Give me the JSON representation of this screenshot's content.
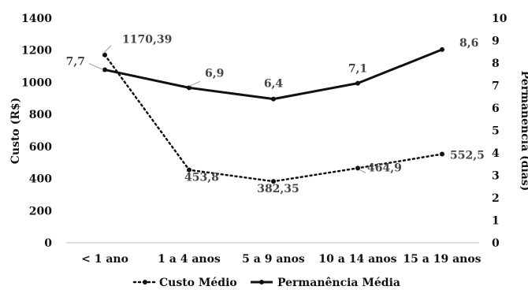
{
  "chart_data": {
    "type": "line",
    "title": "",
    "xlabel": "",
    "ylabel": "Custo (R$)",
    "y2label": "Permanência (dias)",
    "categories": [
      "< 1 ano",
      "1 a 4 anos",
      "5 a 9 anos",
      "10 a 14 anos",
      "15 a 19 anos"
    ],
    "ylim": [
      0,
      1400
    ],
    "y2lim": [
      0,
      10
    ],
    "yticks": [
      "0",
      "200",
      "400",
      "600",
      "800",
      "1000",
      "1200",
      "1400"
    ],
    "y2ticks": [
      "0",
      "1",
      "2",
      "3",
      "4",
      "5",
      "6",
      "7",
      "8",
      "9",
      "10"
    ],
    "grid": false,
    "legend_position": "bottom",
    "series": [
      {
        "name": "Custo Médio",
        "axis": "left",
        "style": "dotted",
        "color": "#111111",
        "values": [
          1170.39,
          453.8,
          382.35,
          464.9,
          552.5
        ],
        "labels": [
          "1170,39",
          "453,8",
          "382,35",
          "464,9",
          "552,5"
        ]
      },
      {
        "name": "Permanência Média",
        "axis": "right",
        "style": "solid",
        "color": "#111111",
        "values": [
          7.7,
          6.9,
          6.4,
          7.1,
          8.6
        ],
        "labels": [
          "7,7",
          "6,9",
          "6,4",
          "7,1",
          "8,6"
        ]
      }
    ]
  }
}
